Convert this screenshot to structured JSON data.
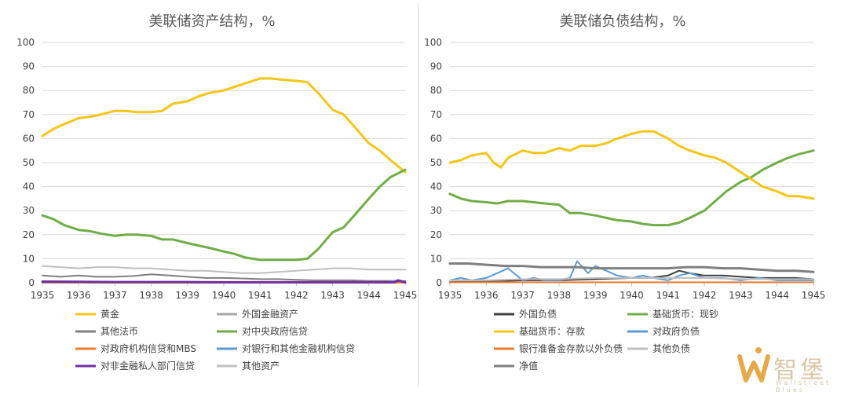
{
  "chart_data": [
    {
      "type": "line",
      "title": "美联储资产结构，%",
      "xlabel": "",
      "ylabel": "",
      "xlim": [
        1935,
        1945
      ],
      "ylim": [
        0,
        100
      ],
      "x_ticks": [
        "1935",
        "1936",
        "1937",
        "1938",
        "1939",
        "1940",
        "1941",
        "1942",
        "1943",
        "1944",
        "1945"
      ],
      "y_ticks": [
        "0",
        "10",
        "20",
        "30",
        "40",
        "50",
        "60",
        "70",
        "80",
        "90",
        "100"
      ],
      "grid": "horizontal",
      "legend": "bottom",
      "series": [
        {
          "name": "黄金",
          "color": "#f5c518",
          "width": 3,
          "x": [
            1935,
            1935.3,
            1935.6,
            1936,
            1936.3,
            1936.6,
            1937,
            1937.3,
            1937.6,
            1938,
            1938.3,
            1938.6,
            1939,
            1939.3,
            1939.6,
            1940,
            1940.3,
            1940.6,
            1941,
            1941.3,
            1941.6,
            1942,
            1942.3,
            1942.6,
            1943,
            1943.3,
            1943.6,
            1944,
            1944.3,
            1944.6,
            1945
          ],
          "y": [
            61,
            64,
            66,
            68.5,
            69,
            70,
            71.5,
            71.5,
            71,
            71,
            71.5,
            74.5,
            75.5,
            77.5,
            79,
            80,
            81.5,
            83,
            85,
            85,
            84.5,
            84,
            83.5,
            79,
            72,
            70,
            65,
            58,
            55,
            51,
            46
          ]
        },
        {
          "name": "外国金融资产",
          "color": "#a6a6a6",
          "width": 2,
          "x": [
            1935,
            1936,
            1937,
            1938,
            1939,
            1940,
            1941,
            1942,
            1943,
            1944,
            1945
          ],
          "y": [
            0.3,
            0.3,
            0.3,
            0.3,
            0.3,
            0.3,
            0.3,
            0.3,
            0.3,
            0.3,
            0.3
          ]
        },
        {
          "name": "其他法币",
          "color": "#7f7f7f",
          "width": 2,
          "x": [
            1935,
            1935.5,
            1936,
            1936.5,
            1937,
            1937.5,
            1938,
            1938.5,
            1939,
            1939.5,
            1940,
            1940.5,
            1941,
            1941.5,
            1942,
            1942.5,
            1943,
            1943.5,
            1944,
            1944.5,
            1945
          ],
          "y": [
            3,
            2.5,
            3,
            2.5,
            2.5,
            2.8,
            3.5,
            3,
            2.5,
            2,
            2,
            1.8,
            1.5,
            1.5,
            1.2,
            1,
            1,
            1,
            0.8,
            0.8,
            0.7
          ]
        },
        {
          "name": "对中央政府信贷",
          "color": "#70ad47",
          "width": 3,
          "x": [
            1935,
            1935.3,
            1935.6,
            1936,
            1936.3,
            1936.6,
            1937,
            1937.3,
            1937.6,
            1938,
            1938.3,
            1938.6,
            1939,
            1939.3,
            1939.6,
            1940,
            1940.3,
            1940.6,
            1941,
            1941.3,
            1941.6,
            1942,
            1942.3,
            1942.6,
            1943,
            1943.3,
            1943.6,
            1944,
            1944.3,
            1944.6,
            1945
          ],
          "y": [
            28,
            26.5,
            24,
            22,
            21.5,
            20.5,
            19.5,
            20,
            20,
            19.5,
            18,
            18,
            16.5,
            15.5,
            14.5,
            13,
            12,
            10.5,
            9.5,
            9.5,
            9.5,
            9.5,
            10,
            14,
            21,
            23,
            28,
            35,
            40,
            44,
            47
          ]
        },
        {
          "name": "对政府机构信贷和MBS",
          "color": "#ed7d31",
          "width": 2,
          "x": [
            1935,
            1945
          ],
          "y": [
            0,
            0
          ]
        },
        {
          "name": "对银行和其他金融机构信贷",
          "color": "#5b9bd5",
          "width": 2,
          "x": [
            1935,
            1940,
            1944.5,
            1944.8,
            1945
          ],
          "y": [
            0.2,
            0.2,
            0.2,
            1,
            0.2
          ]
        },
        {
          "name": "对非金融私人部门信贷",
          "color": "#7030a0",
          "width": 3,
          "x": [
            1935,
            1936,
            1937,
            1938,
            1939,
            1940,
            1941,
            1942,
            1943,
            1944,
            1944.7,
            1944.8,
            1945
          ],
          "y": [
            0.5,
            0.4,
            0.3,
            0.3,
            0.3,
            0.2,
            0.2,
            0.2,
            0.2,
            0.2,
            0.2,
            1,
            0.2
          ]
        },
        {
          "name": "其他资产",
          "color": "#bfbfbf",
          "width": 2,
          "x": [
            1935,
            1935.5,
            1936,
            1936.5,
            1937,
            1937.5,
            1938,
            1938.5,
            1939,
            1939.5,
            1940,
            1940.5,
            1941,
            1941.5,
            1942,
            1942.5,
            1943,
            1943.5,
            1944,
            1944.5,
            1945
          ],
          "y": [
            7,
            6.5,
            6,
            6.5,
            6.5,
            6,
            6,
            5.5,
            5,
            5,
            4.5,
            4,
            4,
            4.5,
            5,
            5.5,
            6,
            6,
            5.5,
            5.5,
            5.5
          ]
        }
      ]
    },
    {
      "type": "line",
      "title": "美联储负债结构，%",
      "xlabel": "",
      "ylabel": "",
      "xlim": [
        1935,
        1945
      ],
      "ylim": [
        0,
        100
      ],
      "x_ticks": [
        "1935",
        "1936",
        "1937",
        "1938",
        "1939",
        "1940",
        "1941",
        "1942",
        "1943",
        "1944",
        "1945"
      ],
      "y_ticks": [
        "0",
        "10",
        "20",
        "30",
        "40",
        "50",
        "60",
        "70",
        "80",
        "90",
        "100"
      ],
      "grid": "horizontal",
      "legend": "bottom",
      "series": [
        {
          "name": "外国负债",
          "color": "#404040",
          "width": 2,
          "x": [
            1935,
            1936,
            1937,
            1938,
            1939,
            1940,
            1940.5,
            1941,
            1941.3,
            1941.6,
            1942,
            1942.5,
            1943,
            1943.5,
            1944,
            1944.5,
            1945
          ],
          "y": [
            0.3,
            0.5,
            1,
            1,
            1.5,
            2,
            2,
            3,
            5,
            4,
            3,
            3,
            2.5,
            2,
            2,
            2,
            1.5
          ]
        },
        {
          "name": "基础货币：现钞",
          "color": "#70ad47",
          "width": 3,
          "x": [
            1935,
            1935.3,
            1935.6,
            1936,
            1936.3,
            1936.6,
            1937,
            1937.3,
            1937.6,
            1938,
            1938.3,
            1938.6,
            1939,
            1939.3,
            1939.6,
            1940,
            1940.3,
            1940.6,
            1941,
            1941.3,
            1941.6,
            1942,
            1942.3,
            1942.6,
            1943,
            1943.3,
            1943.6,
            1944,
            1944.3,
            1944.6,
            1945
          ],
          "y": [
            37,
            35,
            34,
            33.5,
            33,
            34,
            34,
            33.5,
            33,
            32.5,
            29,
            29,
            28,
            27,
            26,
            25.5,
            24.5,
            24,
            24,
            25,
            27,
            30,
            34,
            38,
            42,
            44,
            47,
            50,
            52,
            53.5,
            55
          ]
        },
        {
          "name": "基础货币：存款",
          "color": "#f5c518",
          "width": 3,
          "x": [
            1935,
            1935.3,
            1935.6,
            1936,
            1936.2,
            1936.4,
            1936.6,
            1937,
            1937.3,
            1937.6,
            1938,
            1938.3,
            1938.6,
            1939,
            1939.3,
            1939.6,
            1940,
            1940.3,
            1940.6,
            1941,
            1941.3,
            1941.6,
            1942,
            1942.3,
            1942.6,
            1943,
            1943.3,
            1943.6,
            1944,
            1944.3,
            1944.6,
            1945
          ],
          "y": [
            50,
            51,
            53,
            54,
            50,
            48,
            52,
            55,
            54,
            54,
            56,
            55,
            57,
            57,
            58,
            60,
            62,
            63,
            63,
            60,
            57,
            55,
            53,
            52,
            50,
            46,
            43,
            40,
            38,
            36,
            36,
            35
          ]
        },
        {
          "name": "对政府负债",
          "color": "#5b9bd5",
          "width": 2,
          "x": [
            1935,
            1935.3,
            1935.6,
            1936,
            1936.3,
            1936.6,
            1937,
            1937.3,
            1937.6,
            1938,
            1938.3,
            1938.5,
            1938.8,
            1939,
            1939.3,
            1939.6,
            1940,
            1940.3,
            1940.6,
            1941,
            1941.3,
            1941.6,
            1942,
            1942.5,
            1943,
            1943.5,
            1944,
            1944.5,
            1945
          ],
          "y": [
            1,
            2,
            1,
            2,
            4,
            6,
            1,
            2,
            1,
            1,
            2,
            9,
            4,
            7,
            5,
            3,
            2,
            3,
            2,
            1,
            3,
            4,
            2,
            2,
            1,
            2,
            1,
            1,
            1
          ]
        },
        {
          "name": "银行准备金存款以外负债",
          "color": "#ed7d31",
          "width": 2,
          "x": [
            1935,
            1945
          ],
          "y": [
            0.2,
            0.2
          ]
        },
        {
          "name": "其他负债",
          "color": "#bfbfbf",
          "width": 2,
          "x": [
            1935,
            1936,
            1937,
            1938,
            1939,
            1940,
            1941,
            1942,
            1943,
            1944,
            1945
          ],
          "y": [
            1,
            1,
            1.5,
            1.5,
            2,
            2,
            2,
            2,
            1.5,
            1.5,
            1.5
          ]
        },
        {
          "name": "净值",
          "color": "#7f7f7f",
          "width": 3,
          "x": [
            1935,
            1935.5,
            1936,
            1936.5,
            1937,
            1937.5,
            1938,
            1938.5,
            1939,
            1939.5,
            1940,
            1940.5,
            1941,
            1941.5,
            1942,
            1942.5,
            1943,
            1943.5,
            1944,
            1944.5,
            1945
          ],
          "y": [
            8,
            8,
            7.5,
            7,
            7,
            6.5,
            6.5,
            6.5,
            6,
            6,
            6,
            6,
            6,
            6.5,
            6.5,
            6,
            6,
            5.5,
            5,
            5,
            4.5
          ]
        }
      ]
    }
  ],
  "watermark": {
    "text": "智堡",
    "sub": "Wallstreet Blues"
  }
}
